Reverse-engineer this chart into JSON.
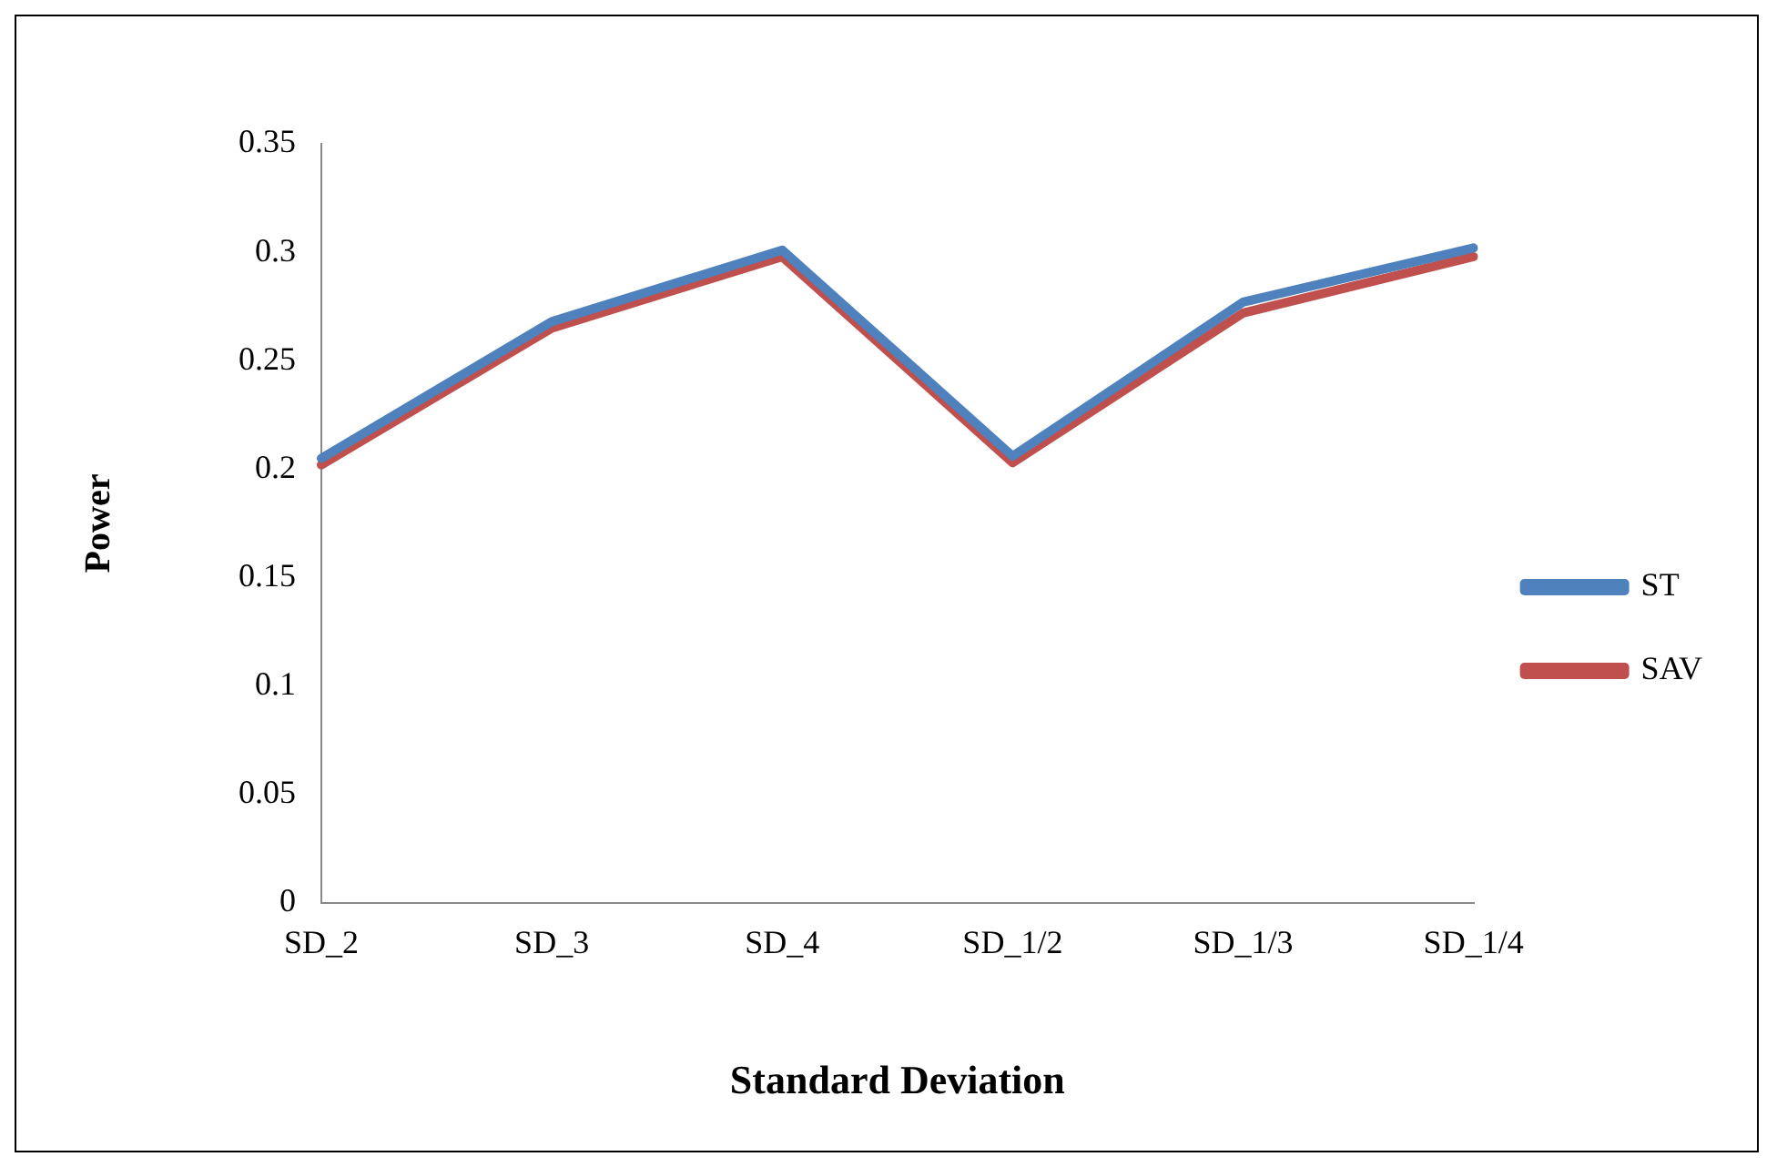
{
  "chart_data": {
    "type": "line",
    "xlabel": "Standard Deviation",
    "ylabel": "Power",
    "categories": [
      "SD_2",
      "SD_3",
      "SD_4",
      "SD_1/2",
      "SD_1/3",
      "SD_1/4"
    ],
    "series": [
      {
        "name": "ST",
        "color": "#4f81bd",
        "values": [
          0.205,
          0.268,
          0.301,
          0.206,
          0.277,
          0.302
        ]
      },
      {
        "name": "SAV",
        "color": "#c0504d",
        "values": [
          0.202,
          0.265,
          0.298,
          0.203,
          0.272,
          0.298
        ]
      }
    ],
    "ylim": [
      0,
      0.35
    ],
    "yticks": [
      0,
      0.05,
      0.1,
      0.15,
      0.2,
      0.25,
      0.3,
      0.35
    ],
    "grid": false,
    "legend": "right",
    "marker": "none",
    "line_style": "solid"
  }
}
